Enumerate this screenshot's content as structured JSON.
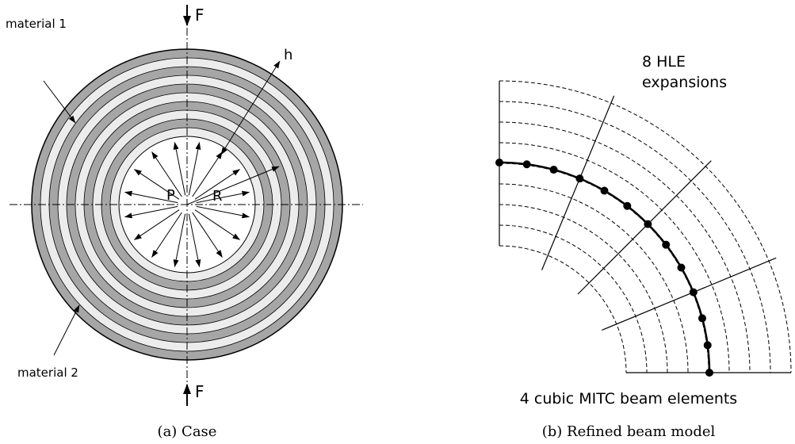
{
  "left_panel": {
    "caption": "(a) Case",
    "labels": {
      "force_top": "F",
      "force_bottom": "F",
      "thickness": "h",
      "pressure": "P",
      "radius": "R",
      "material_1": "material 1",
      "material_2": "material 2"
    },
    "colors": {
      "material_1": "#a6a6a6",
      "material_2": "#ececec"
    }
  },
  "right_panel": {
    "caption": "(b) Refined beam model",
    "labels": {
      "hle_line1": "8 HLE",
      "hle_line2": "expansions",
      "beam_elements": "4 cubic MITC beam elements"
    }
  }
}
